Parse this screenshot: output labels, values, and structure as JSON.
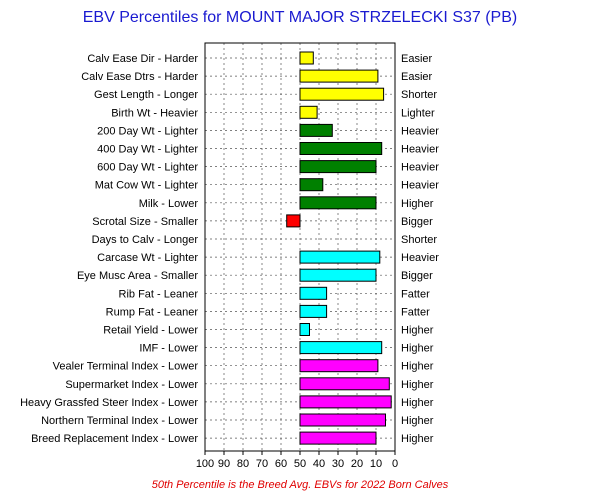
{
  "chart_data": {
    "type": "bar",
    "orientation": "horizontal",
    "title": "EBV Percentiles for MOUNT MAJOR STRZELECKI S37 (PB)",
    "footnote": "50th Percentile is the Breed Avg. EBVs for 2022 Born Calves",
    "xlim": [
      100,
      0
    ],
    "x_reversed": true,
    "baseline": 50,
    "grid": true,
    "xticks": [
      "100",
      "90",
      "80",
      "70",
      "60",
      "50",
      "40",
      "30",
      "20",
      "10",
      "0"
    ],
    "rows": [
      {
        "label": "Calv Ease Dir - Harder",
        "right": "Easier",
        "value": 43,
        "color": "#ffff00"
      },
      {
        "label": "Calv Ease Dtrs - Harder",
        "right": "Easier",
        "value": 9,
        "color": "#ffff00"
      },
      {
        "label": "Gest Length - Longer",
        "right": "Shorter",
        "value": 6,
        "color": "#ffff00"
      },
      {
        "label": "Birth Wt - Heavier",
        "right": "Lighter",
        "value": 41,
        "color": "#ffff00"
      },
      {
        "label": "200 Day Wt - Lighter",
        "right": "Heavier",
        "value": 33,
        "color": "#008000"
      },
      {
        "label": "400 Day Wt - Lighter",
        "right": "Heavier",
        "value": 7,
        "color": "#008000"
      },
      {
        "label": "600 Day Wt - Lighter",
        "right": "Heavier",
        "value": 10,
        "color": "#008000"
      },
      {
        "label": "Mat Cow Wt - Lighter",
        "right": "Heavier",
        "value": 38,
        "color": "#008000"
      },
      {
        "label": "Milk - Lower",
        "right": "Higher",
        "value": 10,
        "color": "#008000"
      },
      {
        "label": "Scrotal Size - Smaller",
        "right": "Bigger",
        "value": 57,
        "color": "#ff0000"
      },
      {
        "label": "Days to Calv - Longer",
        "right": "Shorter",
        "value": null,
        "color": "#ffffff"
      },
      {
        "label": "Carcase Wt - Lighter",
        "right": "Heavier",
        "value": 8,
        "color": "#00ffff"
      },
      {
        "label": "Eye Musc Area - Smaller",
        "right": "Bigger",
        "value": 10,
        "color": "#00ffff"
      },
      {
        "label": "Rib Fat - Leaner",
        "right": "Fatter",
        "value": 36,
        "color": "#00ffff"
      },
      {
        "label": "Rump Fat - Leaner",
        "right": "Fatter",
        "value": 36,
        "color": "#00ffff"
      },
      {
        "label": "Retail Yield - Lower",
        "right": "Higher",
        "value": 45,
        "color": "#00ffff"
      },
      {
        "label": "IMF - Lower",
        "right": "Higher",
        "value": 7,
        "color": "#00ffff"
      },
      {
        "label": "Vealer Terminal Index - Lower",
        "right": "Higher",
        "value": 9,
        "color": "#ff00ff"
      },
      {
        "label": "Supermarket Index - Lower",
        "right": "Higher",
        "value": 3,
        "color": "#ff00ff"
      },
      {
        "label": "Heavy Grassfed Steer Index - Lower",
        "right": "Higher",
        "value": 2,
        "color": "#ff00ff"
      },
      {
        "label": "Northern Terminal Index - Lower",
        "right": "Higher",
        "value": 5,
        "color": "#ff00ff"
      },
      {
        "label": "Breed Replacement Index - Lower",
        "right": "Higher",
        "value": 10,
        "color": "#ff00ff"
      }
    ]
  }
}
